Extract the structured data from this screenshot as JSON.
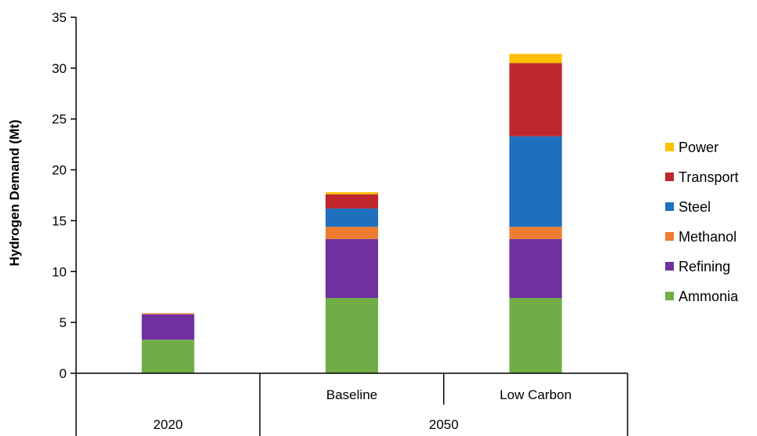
{
  "chart_data": {
    "type": "bar",
    "stacked": true,
    "ylabel": "Hydrogen Demand (Mt)",
    "ylim": [
      0,
      35
    ],
    "yticks": [
      0,
      5,
      10,
      15,
      20,
      25,
      30,
      35
    ],
    "categories": [
      "",
      "Baseline",
      "Low Carbon"
    ],
    "groups": [
      {
        "label": "2020",
        "categories": [
          ""
        ]
      },
      {
        "label": "2050",
        "categories": [
          "Baseline",
          "Low Carbon"
        ]
      }
    ],
    "legend_position": "right",
    "grid": false,
    "series": [
      {
        "name": "Ammonia",
        "color": "#70ad47",
        "values": [
          3.3,
          7.4,
          7.4
        ]
      },
      {
        "name": "Refining",
        "color": "#7030a0",
        "values": [
          2.5,
          5.8,
          5.8
        ]
      },
      {
        "name": "Methanol",
        "color": "#ed7d31",
        "values": [
          0.1,
          1.2,
          1.2
        ]
      },
      {
        "name": "Steel",
        "color": "#1f6fbf",
        "values": [
          0.0,
          1.8,
          8.9
        ]
      },
      {
        "name": "Transport",
        "color": "#c0272d",
        "values": [
          0.0,
          1.4,
          7.2
        ]
      },
      {
        "name": "Power",
        "color": "#ffc000",
        "values": [
          0.0,
          0.2,
          0.9
        ]
      }
    ]
  }
}
